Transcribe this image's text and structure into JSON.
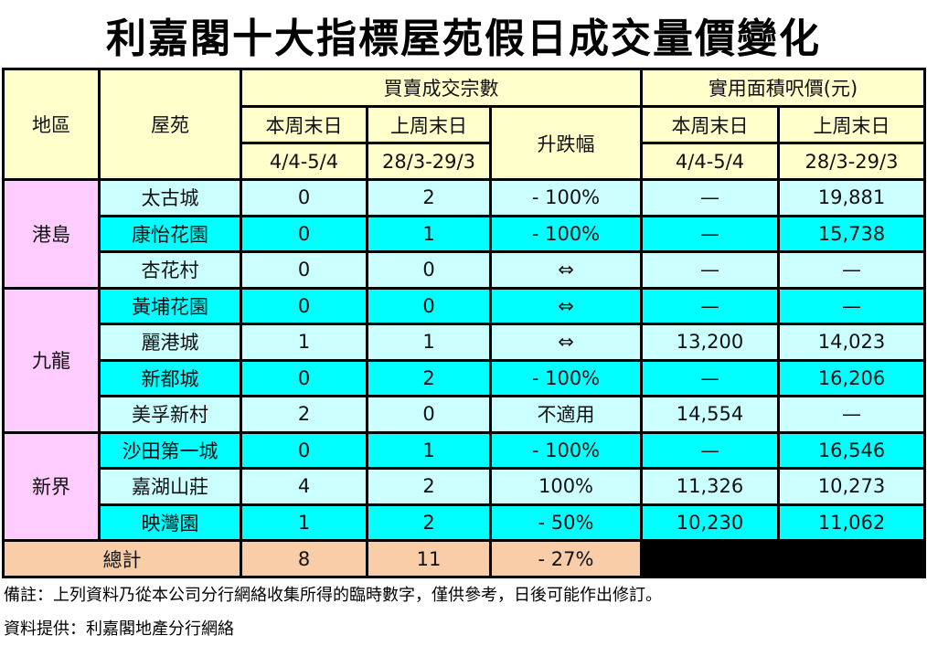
{
  "title": "利嘉閣十大指標屋苑假日成交量價變化",
  "header": {
    "region": "地區",
    "estate": "屋苑",
    "transactions": "買賣成交宗數",
    "price": "實用面積呎價(元)",
    "this_week": "本周末日",
    "this_week_dates": "4/4-5/4",
    "last_week": "上周末日",
    "last_week_dates": "28/3-29/3",
    "change": "升跌幅",
    "price_this_week": "本周末日",
    "price_this_week_dates": "4/4-5/4",
    "price_last_week": "上周末日",
    "price_last_week_dates": "28/3-29/3"
  },
  "regions": [
    "港島",
    "九龍",
    "新界"
  ],
  "rows": [
    {
      "estate": "太古城",
      "this": "0",
      "last": "2",
      "change": "- 100%",
      "price_this": "—",
      "price_last": "19,881"
    },
    {
      "estate": "康怡花園",
      "this": "0",
      "last": "1",
      "change": "- 100%",
      "price_this": "—",
      "price_last": "15,738"
    },
    {
      "estate": "杏花村",
      "this": "0",
      "last": "0",
      "change": "⇔",
      "price_this": "—",
      "price_last": "—"
    },
    {
      "estate": "黃埔花園",
      "this": "0",
      "last": "0",
      "change": "⇔",
      "price_this": "—",
      "price_last": "—"
    },
    {
      "estate": "麗港城",
      "this": "1",
      "last": "1",
      "change": "⇔",
      "price_this": "13,200",
      "price_last": "14,023"
    },
    {
      "estate": "新都城",
      "this": "0",
      "last": "2",
      "change": "- 100%",
      "price_this": "—",
      "price_last": "16,206"
    },
    {
      "estate": "美孚新村",
      "this": "2",
      "last": "0",
      "change": "不適用",
      "price_this": "14,554",
      "price_last": "—"
    },
    {
      "estate": "沙田第一城",
      "this": "0",
      "last": "1",
      "change": "- 100%",
      "price_this": "—",
      "price_last": "16,546"
    },
    {
      "estate": "嘉湖山莊",
      "this": "4",
      "last": "2",
      "change": "100%",
      "price_this": "11,326",
      "price_last": "10,273"
    },
    {
      "estate": "映灣園",
      "this": "1",
      "last": "2",
      "change": "- 50%",
      "price_this": "10,230",
      "price_last": "11,062"
    }
  ],
  "total": {
    "label": "總計",
    "this": "8",
    "last": "11",
    "change": "- 27%"
  },
  "footnote": "備註：上列資料乃從本公司分行網絡收集所得的臨時數字，僅供參考，日後可能作出修訂。",
  "source": "資料提供：利嘉閣地產分行網絡",
  "colors": {
    "header": "#FFFFCC",
    "region": "#FFCCFF",
    "row_light": "#CCFFFF",
    "row_cyan": "#00FFFF",
    "total": "#F9CDA8"
  }
}
